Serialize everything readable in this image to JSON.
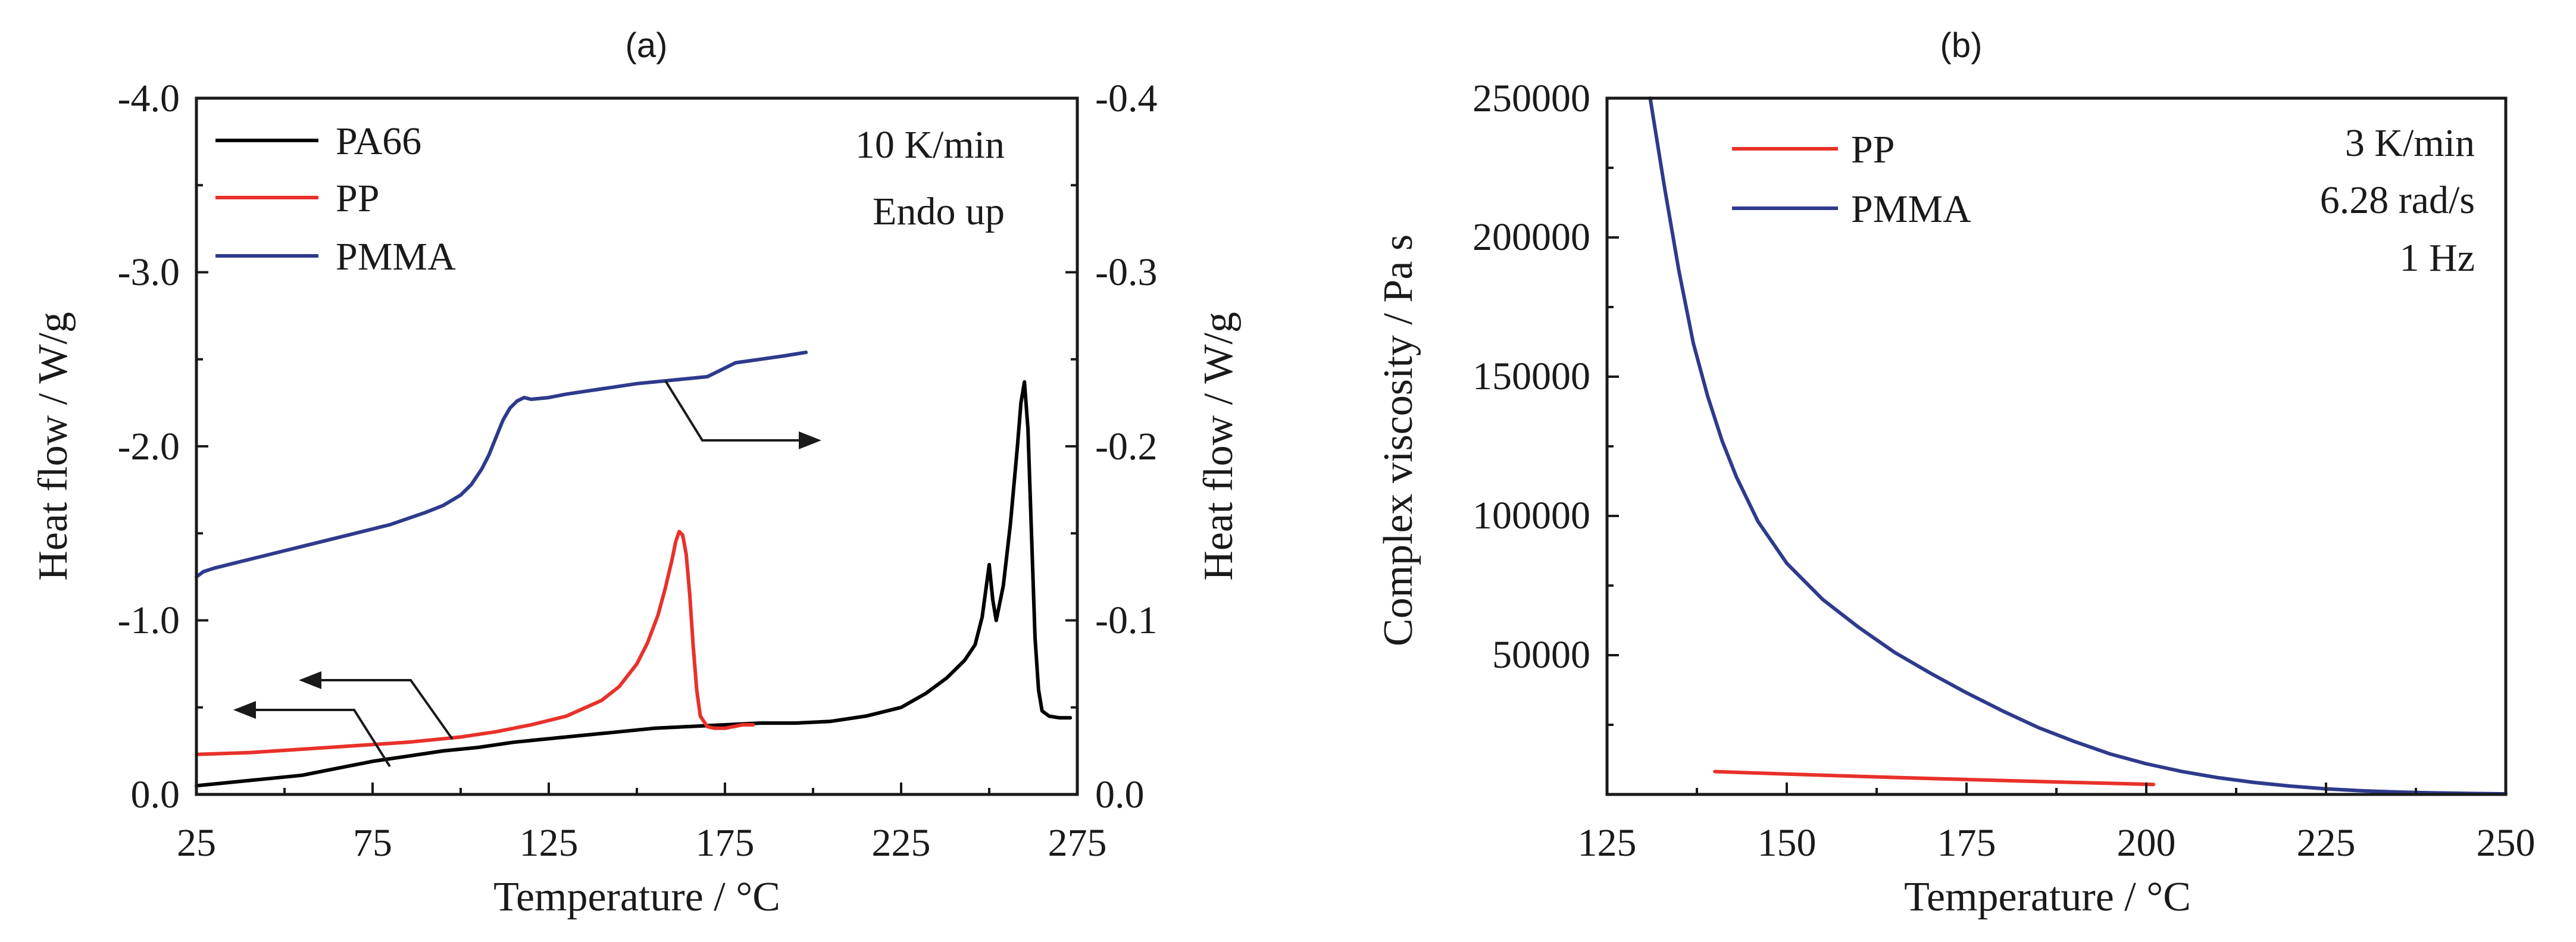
{
  "chart_data": [
    {
      "type": "line",
      "panel_label": "(a)",
      "xlabel": "Temperature / °C",
      "ylabel": "Heat flow / W/g",
      "ylabel_right": "Heat flow / W/g",
      "xlim": [
        25,
        275
      ],
      "ylim": [
        0,
        -4.0
      ],
      "ylim_right": [
        0,
        -0.4
      ],
      "x_ticks": [
        "25",
        "75",
        "125",
        "175",
        "225",
        "275"
      ],
      "x_tick_values": [
        25,
        75,
        125,
        175,
        225,
        275
      ],
      "y_ticks": [
        "0.0",
        "-1.0",
        "-2.0",
        "-3.0",
        "-4.0"
      ],
      "y_tick_values": [
        0,
        -1,
        -2,
        -3,
        -4
      ],
      "y_ticks_right": [
        "0.0",
        "-0.1",
        "-0.2",
        "-0.3",
        "-0.4"
      ],
      "y_tick_values_right": [
        0,
        -0.1,
        -0.2,
        -0.3,
        -0.4
      ],
      "annotations": [
        "10 K/min",
        "Endo up"
      ],
      "legend_position": "top-left",
      "series": [
        {
          "name": "PA66",
          "color": "#000000",
          "axis": "left",
          "x": [
            25,
            35,
            45,
            55,
            65,
            75,
            85,
            95,
            105,
            115,
            125,
            135,
            145,
            155,
            165,
            175,
            185,
            195,
            205,
            215,
            225,
            232,
            238,
            243,
            246,
            248,
            250,
            251,
            252,
            254,
            256,
            258,
            259,
            260,
            261,
            262,
            263,
            264,
            265,
            267,
            270,
            273
          ],
          "y": [
            -0.05,
            -0.07,
            -0.09,
            -0.11,
            -0.15,
            -0.19,
            -0.22,
            -0.25,
            -0.27,
            -0.3,
            -0.32,
            -0.34,
            -0.36,
            -0.38,
            -0.39,
            -0.4,
            -0.41,
            -0.41,
            -0.42,
            -0.45,
            -0.5,
            -0.58,
            -0.67,
            -0.77,
            -0.86,
            -1.02,
            -1.32,
            -1.12,
            -1.0,
            -1.2,
            -1.55,
            -2.0,
            -2.25,
            -2.37,
            -2.1,
            -1.5,
            -0.9,
            -0.6,
            -0.48,
            -0.45,
            -0.44,
            -0.44
          ]
        },
        {
          "name": "PP",
          "color": "#e8312a",
          "axis": "left",
          "x": [
            25,
            40,
            55,
            70,
            85,
            100,
            110,
            120,
            130,
            140,
            145,
            150,
            153,
            156,
            158,
            160,
            161,
            162,
            163,
            164,
            165,
            166,
            167,
            168,
            170,
            172,
            175,
            180,
            183
          ],
          "y": [
            -0.23,
            -0.24,
            -0.26,
            -0.28,
            -0.3,
            -0.33,
            -0.36,
            -0.4,
            -0.45,
            -0.54,
            -0.62,
            -0.75,
            -0.87,
            -1.03,
            -1.18,
            -1.35,
            -1.45,
            -1.51,
            -1.49,
            -1.38,
            -1.15,
            -0.85,
            -0.6,
            -0.45,
            -0.39,
            -0.38,
            -0.38,
            -0.4,
            -0.4
          ]
        },
        {
          "name": "PMMA",
          "color": "#2e3a8c",
          "axis": "right",
          "x": [
            25,
            27,
            30,
            40,
            50,
            60,
            70,
            80,
            90,
            95,
            100,
            103,
            106,
            108,
            110,
            112,
            114,
            116,
            118,
            120,
            125,
            130,
            140,
            150,
            160,
            170,
            172,
            175,
            178,
            185,
            192,
            198
          ],
          "y": [
            -0.125,
            -0.128,
            -0.13,
            -0.135,
            -0.14,
            -0.145,
            -0.15,
            -0.155,
            -0.162,
            -0.166,
            -0.172,
            -0.178,
            -0.187,
            -0.195,
            -0.205,
            -0.215,
            -0.222,
            -0.226,
            -0.228,
            -0.227,
            -0.228,
            -0.23,
            -0.233,
            -0.236,
            -0.238,
            -0.24,
            -0.242,
            -0.245,
            -0.248,
            -0.25,
            -0.252,
            -0.254
          ]
        }
      ]
    },
    {
      "type": "line",
      "panel_label": "(b)",
      "xlabel": "Temperature / °C",
      "ylabel": "Complex viscosity / Pa s",
      "xlim": [
        125,
        250
      ],
      "ylim": [
        0,
        250000
      ],
      "x_ticks": [
        "125",
        "150",
        "175",
        "200",
        "225",
        "250"
      ],
      "x_tick_values": [
        125,
        150,
        175,
        200,
        225,
        250
      ],
      "y_ticks": [
        "50000",
        "100000",
        "150000",
        "200000",
        "250000"
      ],
      "y_tick_values": [
        50000,
        100000,
        150000,
        200000,
        250000
      ],
      "annotations": [
        "3 K/min",
        "6.28 rad/s",
        "1 Hz"
      ],
      "legend_position": "top-left",
      "series": [
        {
          "name": "PP",
          "color": "#e8312a",
          "x": [
            140,
            150,
            160,
            170,
            180,
            190,
            201
          ],
          "y": [
            8200,
            7300,
            6500,
            5700,
            5000,
            4300,
            3600
          ]
        },
        {
          "name": "PMMA",
          "color": "#2e3a8c",
          "x": [
            131,
            133,
            135,
            137,
            139,
            141,
            143,
            146,
            150,
            155,
            160,
            165,
            170,
            175,
            180,
            185,
            190,
            195,
            200,
            205,
            210,
            215,
            220,
            225,
            230,
            235,
            240,
            245,
            250
          ],
          "y": [
            250000,
            218000,
            188000,
            162000,
            143000,
            127000,
            114000,
            98000,
            83000,
            70000,
            60000,
            51000,
            43500,
            36500,
            30000,
            24000,
            19000,
            14500,
            11000,
            8200,
            6000,
            4300,
            3000,
            2000,
            1300,
            850,
            550,
            350,
            200
          ]
        }
      ]
    }
  ]
}
